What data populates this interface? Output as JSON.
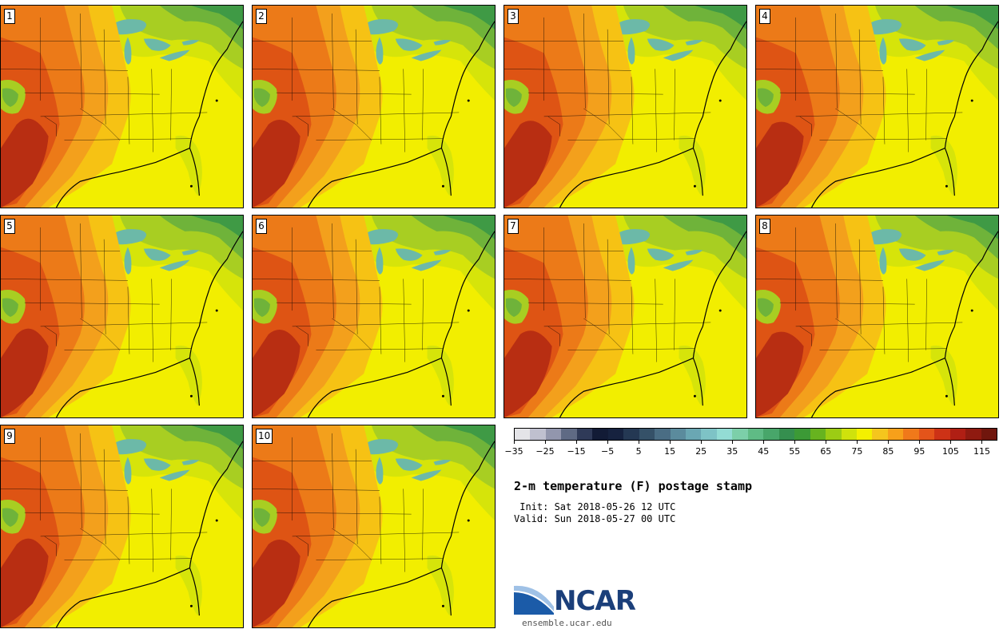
{
  "title": "2-m temperature (F) postage stamp",
  "init_text": " Init: Sat 2018-05-26 12 UTC",
  "valid_text": "Valid: Sun 2018-05-27 00 UTC",
  "members": [
    {
      "label": "1"
    },
    {
      "label": "2"
    },
    {
      "label": "3"
    },
    {
      "label": "4"
    },
    {
      "label": "5"
    },
    {
      "label": "6"
    },
    {
      "label": "7"
    },
    {
      "label": "8"
    },
    {
      "label": "9"
    },
    {
      "label": "10"
    }
  ],
  "colorbar": {
    "colors": [
      "#e4e4e8",
      "#bfc0cf",
      "#9296ad",
      "#5f6a84",
      "#2f3a58",
      "#121b36",
      "#16223f",
      "#243853",
      "#355168",
      "#4a6d84",
      "#5b8b9d",
      "#6aa7b3",
      "#7ec3c6",
      "#93dcd4",
      "#7ccfa9",
      "#5fbb85",
      "#48a66a",
      "#358f4f",
      "#3c9a36",
      "#67b31f",
      "#9ccc14",
      "#cfe20c",
      "#f4f000",
      "#f5c61d",
      "#f7a01a",
      "#f0791a",
      "#e4541a",
      "#cd3216",
      "#b01f14",
      "#8f1a10",
      "#70160d"
    ],
    "tick_labels": [
      "−35",
      "−25",
      "−15",
      "−5",
      "5",
      "15",
      "25",
      "35",
      "45",
      "55",
      "65",
      "75",
      "85",
      "95",
      "105",
      "115"
    ],
    "range": [
      -35,
      120
    ]
  },
  "logo": {
    "text": "NCAR",
    "url": "ensemble.ucar.edu",
    "colors": {
      "blue": "#1b5ba8",
      "dark": "#1b3f7a",
      "light": "#9fc1e6"
    }
  },
  "map_colors": {
    "gulf_yellow": "#f2ee00",
    "yellow_green": "#d6e40a",
    "light_green": "#a8ce22",
    "mid_green": "#6fb33a",
    "dark_green": "#3f9a45",
    "lake_teal": "#6cb9a8",
    "amber": "#f6c214",
    "orange": "#f3a01c",
    "deep_orange": "#ec7a18",
    "red_orange": "#de5414",
    "dark_red": "#b82e12",
    "border": "#000000"
  }
}
